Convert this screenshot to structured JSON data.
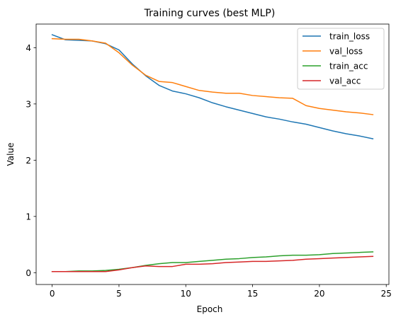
{
  "chart_data": {
    "type": "line",
    "title": "Training curves (best MLP)",
    "xlabel": "Epoch",
    "ylabel": "Value",
    "xlim": [
      -1.2,
      25.2
    ],
    "ylim": [
      -0.21,
      4.42
    ],
    "xticks": [
      0,
      5,
      10,
      15,
      20,
      25
    ],
    "yticks": [
      0,
      1,
      2,
      3,
      4
    ],
    "grid": false,
    "legend_position": "top-right",
    "x": [
      0,
      1,
      2,
      3,
      4,
      5,
      6,
      7,
      8,
      9,
      10,
      11,
      12,
      13,
      14,
      15,
      16,
      17,
      18,
      19,
      20,
      21,
      22,
      23,
      24
    ],
    "series": [
      {
        "name": "train_loss",
        "color": "#1f77b4",
        "values": [
          4.23,
          4.14,
          4.13,
          4.12,
          4.07,
          3.96,
          3.71,
          3.5,
          3.33,
          3.23,
          3.18,
          3.11,
          3.02,
          2.95,
          2.89,
          2.83,
          2.77,
          2.73,
          2.68,
          2.64,
          2.58,
          2.52,
          2.47,
          2.43,
          2.38
        ]
      },
      {
        "name": "val_loss",
        "color": "#ff7f0e",
        "values": [
          4.16,
          4.15,
          4.15,
          4.12,
          4.08,
          3.91,
          3.69,
          3.51,
          3.4,
          3.38,
          3.31,
          3.24,
          3.21,
          3.19,
          3.19,
          3.15,
          3.13,
          3.11,
          3.1,
          2.97,
          2.92,
          2.89,
          2.86,
          2.84,
          2.81
        ]
      },
      {
        "name": "train_acc",
        "color": "#2ca02c",
        "values": [
          0.02,
          0.02,
          0.03,
          0.03,
          0.04,
          0.06,
          0.09,
          0.13,
          0.16,
          0.18,
          0.18,
          0.2,
          0.22,
          0.24,
          0.25,
          0.27,
          0.28,
          0.3,
          0.31,
          0.31,
          0.32,
          0.34,
          0.35,
          0.36,
          0.37
        ]
      },
      {
        "name": "val_acc",
        "color": "#d62728",
        "values": [
          0.02,
          0.02,
          0.02,
          0.02,
          0.02,
          0.05,
          0.09,
          0.12,
          0.11,
          0.11,
          0.15,
          0.15,
          0.16,
          0.18,
          0.19,
          0.2,
          0.2,
          0.21,
          0.22,
          0.24,
          0.25,
          0.26,
          0.27,
          0.28,
          0.29
        ]
      }
    ]
  }
}
